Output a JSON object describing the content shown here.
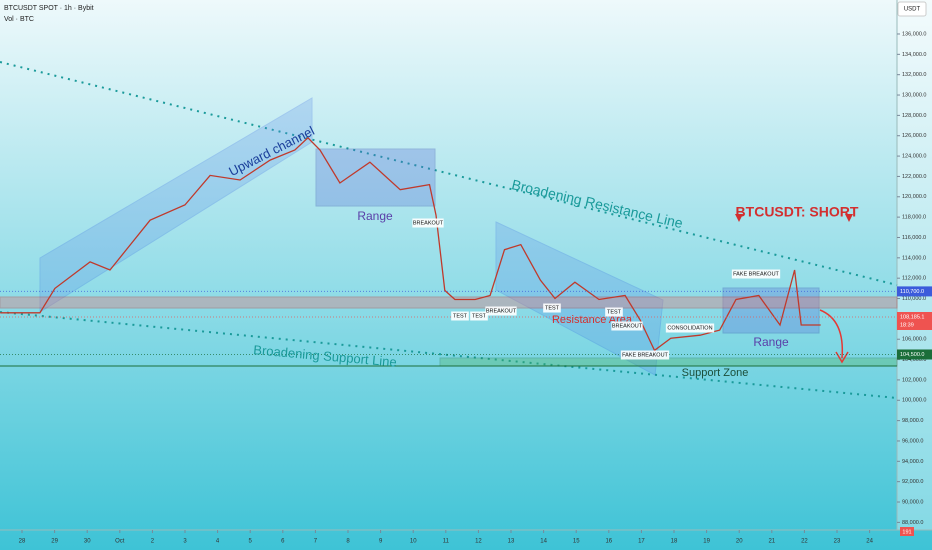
{
  "chart_data": {
    "type": "line",
    "header": {
      "symbol": "BTCUSDT SPOT · 1h · Bybit",
      "volume": "Vol · BTC",
      "currency": "USDT"
    },
    "series": [
      {
        "name": "BTCUSDT",
        "color": "#c0392b",
        "x": [
          -0.67,
          0.55,
          1.01,
          2.09,
          2.7,
          3.93,
          5.0,
          5.77,
          6.69,
          7.61,
          8.37,
          8.77,
          9.14,
          9.75,
          10.67,
          11.6,
          12.5,
          12.7,
          12.97,
          13.28,
          13.9,
          14.36,
          14.8,
          15.3,
          15.9,
          16.35,
          16.96,
          17.7,
          18.5,
          18.96,
          19.4,
          19.9,
          20.8,
          21.4,
          21.9,
          22.6,
          23.25,
          23.7,
          23.9,
          24.5
        ],
        "values": [
          108600,
          108600,
          111000,
          113600,
          112800,
          117700,
          119200,
          122100,
          121650,
          123600,
          124600,
          125800,
          124600,
          121350,
          123400,
          120700,
          121200,
          118200,
          110800,
          109900,
          109900,
          110300,
          114800,
          115300,
          111800,
          110000,
          111600,
          109900,
          110300,
          107900,
          104900,
          106100,
          106400,
          106900,
          109900,
          110300,
          107400,
          112800,
          107400,
          107400
        ]
      }
    ],
    "xlim": [
      -0.675,
      26.84
    ],
    "ylim": [
      87250,
      139340
    ],
    "xticks": [
      {
        "value": 0,
        "label": "28"
      },
      {
        "value": 1,
        "label": "29"
      },
      {
        "value": 2,
        "label": "30"
      },
      {
        "value": 3,
        "label": "Oct"
      },
      {
        "value": 4,
        "label": "2"
      },
      {
        "value": 5,
        "label": "3"
      },
      {
        "value": 6,
        "label": "4"
      },
      {
        "value": 7,
        "label": "5"
      },
      {
        "value": 8,
        "label": "6"
      },
      {
        "value": 9,
        "label": "7"
      },
      {
        "value": 10,
        "label": "8"
      },
      {
        "value": 11,
        "label": "9"
      },
      {
        "value": 12,
        "label": "10"
      },
      {
        "value": 13,
        "label": "11"
      },
      {
        "value": 14,
        "label": "12"
      },
      {
        "value": 15,
        "label": "13"
      },
      {
        "value": 16,
        "label": "14"
      },
      {
        "value": 17,
        "label": "15"
      },
      {
        "value": 18,
        "label": "16"
      },
      {
        "value": 19,
        "label": "17"
      },
      {
        "value": 20,
        "label": "18"
      },
      {
        "value": 21,
        "label": "19"
      },
      {
        "value": 22,
        "label": "20"
      },
      {
        "value": 23,
        "label": "21"
      },
      {
        "value": 24,
        "label": "22"
      },
      {
        "value": 25,
        "label": "23"
      },
      {
        "value": 26,
        "label": "24"
      }
    ],
    "yticks": [
      {
        "value": 88000,
        "label": "88,000.0"
      },
      {
        "value": 90000,
        "label": "90,000.0"
      },
      {
        "value": 92000,
        "label": "92,000.0"
      },
      {
        "value": 94000,
        "label": "94,000.0"
      },
      {
        "value": 96000,
        "label": "96,000.0"
      },
      {
        "value": 98000,
        "label": "98,000.0"
      },
      {
        "value": 100000,
        "label": "100,000.0"
      },
      {
        "value": 102000,
        "label": "102,000.0"
      },
      {
        "value": 104000,
        "label": "104,000.0"
      },
      {
        "value": 106000,
        "label": "106,000.0"
      },
      {
        "value": 108000,
        "label": "108,000.0"
      },
      {
        "value": 110000,
        "label": "110,000.0"
      },
      {
        "value": 112000,
        "label": "112,000.0"
      },
      {
        "value": 114000,
        "label": "114,000.0"
      },
      {
        "value": 116000,
        "label": "116,000.0"
      },
      {
        "value": 118000,
        "label": "118,000.0"
      },
      {
        "value": 120000,
        "label": "120,000.0"
      },
      {
        "value": 122000,
        "label": "122,000.0"
      },
      {
        "value": 124000,
        "label": "124,000.0"
      },
      {
        "value": 126000,
        "label": "126,000.0"
      },
      {
        "value": 128000,
        "label": "128,000.0"
      },
      {
        "value": 130000,
        "label": "130,000.0"
      },
      {
        "value": 132000,
        "label": "132,000.0"
      },
      {
        "value": 134000,
        "label": "134,000.0"
      },
      {
        "value": 136000,
        "label": "136,000.0"
      }
    ],
    "levels": [
      {
        "value": 110700,
        "label": "110,700.0",
        "color": "#3b5bdb"
      },
      {
        "value": 108185.1,
        "label": "108,185.1",
        "color": "#ef5350"
      },
      {
        "value": 104500,
        "label": "104,500.0",
        "color": "#1b6e3a"
      }
    ],
    "countdown": "18:39",
    "volume_label": "191",
    "annotations": [
      "Upward channel",
      "Range",
      "BREAKOUT",
      "TEST",
      "TEST",
      "BREAKOUT",
      "Broadening Resistance Line",
      "Broadening Support Line",
      "BTCUSDT: SHORT",
      "FAKE BREAKOUT",
      "Resistance Area",
      "TEST",
      "TEST",
      "BREAKOUT",
      "FAKE BREAKOUT",
      "CONSOLIDATION",
      "Range",
      "Support Zone"
    ]
  }
}
